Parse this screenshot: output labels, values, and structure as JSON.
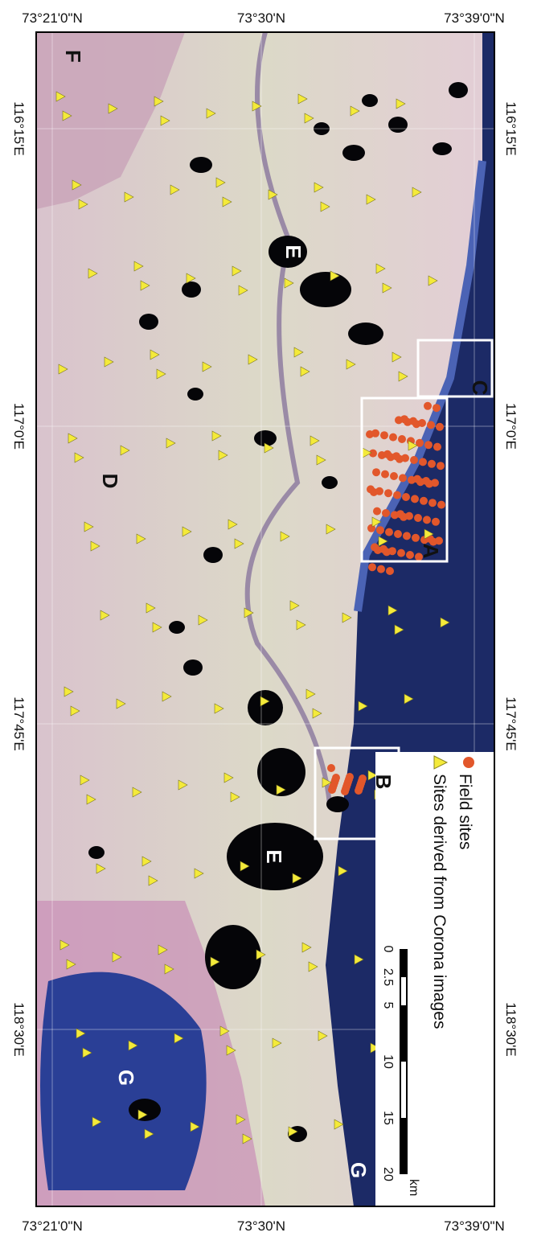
{
  "top_labels": [
    "73°21'0\"N",
    "73°30'N",
    "73°39'0\"N"
  ],
  "bottom_labels": [
    "73°21'0\"N",
    "73°30'N",
    "73°39'0\"N"
  ],
  "left_labels": [
    "116°15'E",
    "117°0'E",
    "117°45'E",
    "118°30'E"
  ],
  "right_labels": [
    "116°15'E",
    "117°0'E",
    "117°45'E",
    "118°30'E"
  ],
  "region_labels": [
    "F",
    "E",
    "E",
    "D",
    "C",
    "A",
    "B",
    "G",
    "G"
  ],
  "legend": {
    "items": [
      "Field sites",
      "Sites derived from Corona images"
    ]
  },
  "scale_bar": {
    "labels": [
      "0",
      "2.5",
      "5",
      "10",
      "15",
      "20"
    ],
    "unit": "km"
  }
}
